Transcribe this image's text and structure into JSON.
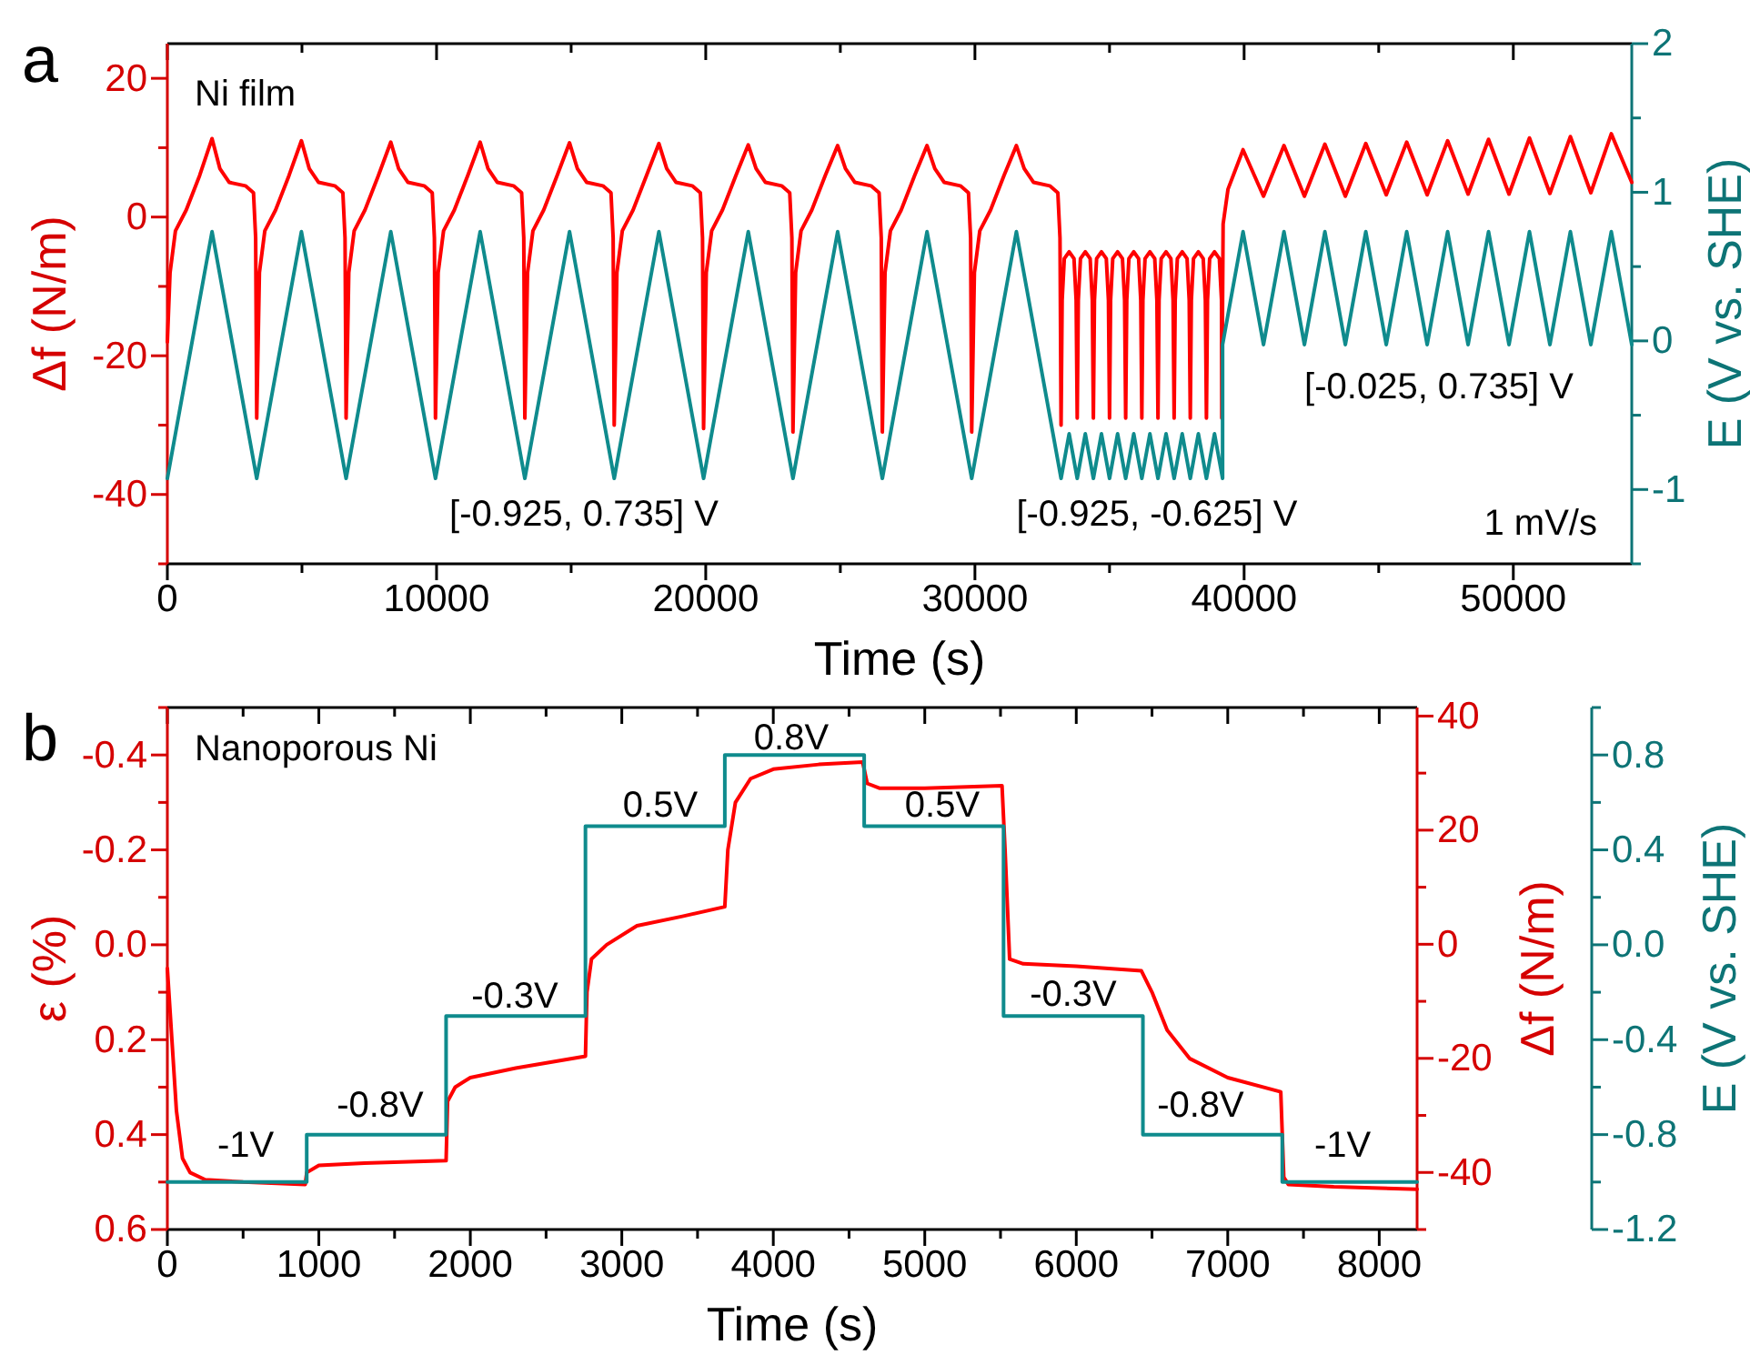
{
  "chart_data": [
    {
      "type": "line",
      "title": "a",
      "xlabel": "Time (s)",
      "ylabel": "Δf (N/m)",
      "y2label": "E (V vs. SHE)",
      "xlim": [
        0,
        54400
      ],
      "xticks": [
        0,
        {
          "value": 5000,
          "label": null
        },
        10000,
        {
          "value": 15000,
          "label": null
        },
        20000,
        {
          "value": 25000,
          "label": null
        },
        30000,
        {
          "value": 35000,
          "label": null
        },
        40000,
        {
          "value": 45000,
          "label": null
        },
        50000
      ],
      "ylim": [
        -50,
        25
      ],
      "yticks": [
        {
          "value": -50,
          "label": null
        },
        -40,
        {
          "value": -30,
          "label": null
        },
        -20,
        {
          "value": -10,
          "label": null
        },
        0,
        {
          "value": 10,
          "label": null
        },
        20
      ],
      "y2lim": [
        -1.5,
        2
      ],
      "y2ticks": [
        {
          "value": -1.5,
          "label": null
        },
        -1,
        {
          "value": -0.5,
          "label": null
        },
        0,
        {
          "value": 0.5,
          "label": null
        },
        1,
        {
          "value": 1.5,
          "label": null
        },
        2
      ],
      "series": [
        {
          "color": "#ff0000",
          "x": [
            0,
            100,
            300,
            700,
            1200,
            1660,
            1950,
            2300,
            2900,
            3200,
            3280,
            3320,
            3420,
            3620,
            4020,
            4520,
            4980,
            5270,
            5620,
            6220,
            6520,
            6600,
            6640,
            6740,
            6940,
            7340,
            7840,
            8300,
            8590,
            8940,
            9540,
            9840,
            9920,
            9960,
            10060,
            10260,
            10660,
            11160,
            11620,
            11910,
            12260,
            12860,
            13160,
            13240,
            13280,
            13380,
            13580,
            13980,
            14480,
            14940,
            15230,
            15580,
            16180,
            16480,
            16560,
            16600,
            16700,
            16900,
            17300,
            17800,
            18260,
            18550,
            18900,
            19500,
            19800,
            19880,
            19920,
            20020,
            20220,
            20620,
            21120,
            21580,
            21870,
            22220,
            22820,
            23120,
            23200,
            23240,
            23340,
            23540,
            23940,
            24440,
            24900,
            25190,
            25540,
            26140,
            26440,
            26520,
            26560,
            26660,
            26860,
            27260,
            27760,
            28220,
            28510,
            28860,
            29460,
            29760,
            29840,
            29880,
            29980,
            30180,
            30580,
            31080,
            31540,
            31830,
            32180,
            32780,
            33080,
            33160,
            33200,
            33240,
            33320,
            33500,
            33680,
            33760,
            33800,
            33840,
            33920,
            34100,
            34280,
            34360,
            34400,
            34440,
            34520,
            34700,
            34880,
            34960,
            35000,
            35040,
            35120,
            35300,
            35480,
            35560,
            35600,
            35640,
            35720,
            35900,
            36080,
            36160,
            36200,
            36240,
            36320,
            36500,
            36680,
            36760,
            36800,
            36840,
            36920,
            37100,
            37280,
            37360,
            37400,
            37440,
            37520,
            37700,
            37880,
            37960,
            38000,
            38040,
            38120,
            38300,
            38480,
            38560,
            38600,
            38640,
            38720,
            38900,
            39080,
            39160,
            39170,
            39220,
            39400,
            39960,
            40720,
            41480,
            42240,
            43000,
            43760,
            44520,
            45280,
            46040,
            46800,
            47560,
            48320,
            49080,
            49840,
            50600,
            51360,
            52120,
            52880,
            53640,
            54400
          ],
          "values": [
            -18,
            -8,
            -2,
            1,
            6,
            11.3,
            7,
            5,
            4.5,
            3.5,
            -3,
            -29,
            -8,
            -2,
            1,
            6,
            11,
            7,
            5,
            4.5,
            3.5,
            -3,
            -29,
            -8,
            -2,
            1,
            6,
            10.8,
            7,
            5,
            4.5,
            3.5,
            -3,
            -29,
            -8,
            -2,
            1,
            6,
            10.8,
            7,
            5,
            4.5,
            3.5,
            -3,
            -29,
            -8,
            -2,
            1,
            6,
            10.7,
            7,
            5,
            4.5,
            3.5,
            -3,
            -30,
            -8,
            -2,
            1,
            6,
            10.6,
            7,
            5,
            4.5,
            3.5,
            -3,
            -30.5,
            -8,
            -2,
            1,
            6,
            10.4,
            7,
            5,
            4.5,
            3.5,
            -3,
            -31,
            -8,
            -2,
            1,
            6,
            10.3,
            7,
            5,
            4.5,
            3.5,
            -3,
            -31,
            -8,
            -2,
            1,
            6,
            10.3,
            7,
            5,
            4.5,
            3.5,
            -3,
            -31,
            -8,
            -2,
            1,
            6,
            10.3,
            7,
            5,
            4.5,
            3.5,
            -3,
            -30,
            -12,
            -6,
            -5,
            -6,
            -12,
            -29,
            -12,
            -6,
            -5,
            -6,
            -12,
            -29,
            -12,
            -6,
            -5,
            -6,
            -12,
            -29,
            -12,
            -6,
            -5,
            -6,
            -12,
            -29,
            -12,
            -6,
            -5,
            -6,
            -12,
            -29,
            -12,
            -6,
            -5,
            -6,
            -12,
            -29,
            -12,
            -6,
            -5,
            -6,
            -12,
            -29,
            -12,
            -6,
            -5,
            -6,
            -12,
            -29,
            -12,
            -6,
            -5,
            -6,
            -12,
            -29,
            -12,
            -6,
            -5,
            -6,
            -12,
            -29,
            -1,
            4,
            9.7,
            3,
            10.3,
            3,
            10.5,
            3,
            10.6,
            3.2,
            10.8,
            3.2,
            11,
            3.3,
            11.2,
            3.3,
            11.4,
            3.4,
            11.6,
            3.5,
            12,
            5
          ]
        },
        {
          "color": "#0f8b8d",
          "axis": "y2",
          "x": [
            0,
            1660,
            3320,
            4980,
            6640,
            8300,
            9960,
            11620,
            13280,
            14940,
            16600,
            18260,
            19920,
            21580,
            23240,
            24900,
            26560,
            28220,
            29880,
            31540,
            33200,
            33500,
            33800,
            34100,
            34400,
            34700,
            35000,
            35300,
            35600,
            35900,
            36200,
            36500,
            36800,
            37100,
            37400,
            37700,
            38000,
            38300,
            38600,
            38900,
            39200,
            39200,
            39960,
            40720,
            41480,
            42240,
            43000,
            43760,
            44520,
            45280,
            46040,
            46800,
            47560,
            48320,
            49080,
            49840,
            50600,
            51360,
            52120,
            52880,
            53640,
            54400
          ],
          "values": [
            -0.925,
            0.735,
            -0.925,
            0.735,
            -0.925,
            0.735,
            -0.925,
            0.735,
            -0.925,
            0.735,
            -0.925,
            0.735,
            -0.925,
            0.735,
            -0.925,
            0.735,
            -0.925,
            0.735,
            -0.925,
            0.735,
            -0.925,
            -0.625,
            -0.925,
            -0.625,
            -0.925,
            -0.625,
            -0.925,
            -0.625,
            -0.925,
            -0.625,
            -0.925,
            -0.625,
            -0.925,
            -0.625,
            -0.925,
            -0.625,
            -0.925,
            -0.625,
            -0.925,
            -0.625,
            -0.925,
            -0.025,
            0.735,
            -0.025,
            0.735,
            -0.025,
            0.735,
            -0.025,
            0.735,
            -0.025,
            0.735,
            -0.025,
            0.735,
            -0.025,
            0.735,
            -0.025,
            0.735,
            -0.025,
            0.735,
            -0.025,
            0.735,
            -0.025
          ]
        }
      ],
      "annotations": [
        "Ni film",
        "1 mV/s",
        "[-0.925, 0.735] V",
        "[-0.925, -0.625] V",
        "[-0.025, 0.735] V"
      ]
    },
    {
      "type": "line",
      "title": "b",
      "xlabel": "Time (s)",
      "ylabel": "ε (%)",
      "y2label": "Δf (N/m)",
      "y3label": "E (V vs. SHE)",
      "xlim": [
        0,
        8250
      ],
      "xticks": [
        0,
        {
          "value": 500,
          "label": null
        },
        1000,
        {
          "value": 1500,
          "label": null
        },
        2000,
        {
          "value": 2500,
          "label": null
        },
        3000,
        {
          "value": 3500,
          "label": null
        },
        4000,
        {
          "value": 4500,
          "label": null
        },
        5000,
        {
          "value": 5500,
          "label": null
        },
        6000,
        {
          "value": 6500,
          "label": null
        },
        7000,
        {
          "value": 7500,
          "label": null
        },
        8000
      ],
      "ylim": [
        0.6,
        -0.5
      ],
      "yticks": [
        {
          "value": -0.5,
          "label": null
        },
        -0.4,
        {
          "value": -0.3,
          "label": null
        },
        -0.2,
        {
          "value": -0.1,
          "label": null
        },
        {
          "value": 0,
          "label": "0.0"
        },
        {
          "value": 0.1,
          "label": null
        },
        0.2,
        {
          "value": 0.3,
          "label": null
        },
        0.4,
        {
          "value": 0.5,
          "label": null
        },
        0.6
      ],
      "y2lim": [
        -50,
        41.5
      ],
      "y2ticks": [
        {
          "value": -50,
          "label": null
        },
        -40,
        {
          "value": -30,
          "label": null
        },
        -20,
        {
          "value": -10,
          "label": null
        },
        0,
        {
          "value": 10,
          "label": null
        },
        20,
        {
          "value": 30,
          "label": null
        },
        40
      ],
      "y3lim": [
        -1.2,
        1.0
      ],
      "y3ticks": [
        -1.2,
        {
          "value": -1.0,
          "label": null
        },
        -0.8,
        {
          "value": -0.6,
          "label": null
        },
        -0.4,
        {
          "value": -0.2,
          "label": null
        },
        {
          "value": 0,
          "label": "0.0"
        },
        {
          "value": 0.2,
          "label": null
        },
        0.4,
        {
          "value": 0.6,
          "label": null
        },
        0.8,
        {
          "value": 1.0,
          "label": null
        }
      ],
      "series": [
        {
          "color": "#ff0000",
          "x": [
            0,
            30,
            60,
            100,
            150,
            250,
            500,
            910,
            920,
            1000,
            1300,
            1840,
            1850,
            1900,
            2000,
            2300,
            2760,
            2770,
            2800,
            2900,
            3100,
            3400,
            3680,
            3700,
            3750,
            3850,
            4000,
            4300,
            4590,
            4620,
            4700,
            5000,
            5510,
            5530,
            5560,
            5650,
            6000,
            6430,
            6500,
            6600,
            6750,
            7000,
            7350,
            7370,
            7400,
            7700,
            8250
          ],
          "values": [
            0.05,
            0.2,
            0.35,
            0.45,
            0.48,
            0.495,
            0.5,
            0.505,
            0.48,
            0.465,
            0.46,
            0.455,
            0.33,
            0.3,
            0.28,
            0.26,
            0.235,
            0.1,
            0.03,
            0,
            -0.04,
            -0.06,
            -0.08,
            -0.2,
            -0.3,
            -0.35,
            -0.37,
            -0.38,
            -0.385,
            -0.34,
            -0.33,
            -0.33,
            -0.335,
            -0.2,
            0.03,
            0.04,
            0.045,
            0.055,
            0.1,
            0.18,
            0.24,
            0.28,
            0.31,
            0.49,
            0.505,
            0.51,
            0.515
          ]
        },
        {
          "color": "#0f8b8d",
          "axis": "y3",
          "x": [
            0,
            920,
            920,
            1840,
            1840,
            2760,
            2760,
            3680,
            3680,
            4600,
            4600,
            5520,
            5520,
            6440,
            6440,
            7360,
            7360,
            8250
          ],
          "values": [
            -1,
            -1,
            -0.8,
            -0.8,
            -0.3,
            -0.3,
            0.5,
            0.5,
            0.8,
            0.8,
            0.5,
            0.5,
            -0.3,
            -0.3,
            -0.8,
            -0.8,
            -1,
            -1
          ]
        }
      ],
      "annotations": [
        "Nanoporous Ni",
        "-1V",
        "-0.8V",
        "-0.3V",
        "0.5V",
        "0.8V",
        "0.5V",
        "-0.3V",
        "-0.8V",
        "-1V"
      ]
    }
  ]
}
